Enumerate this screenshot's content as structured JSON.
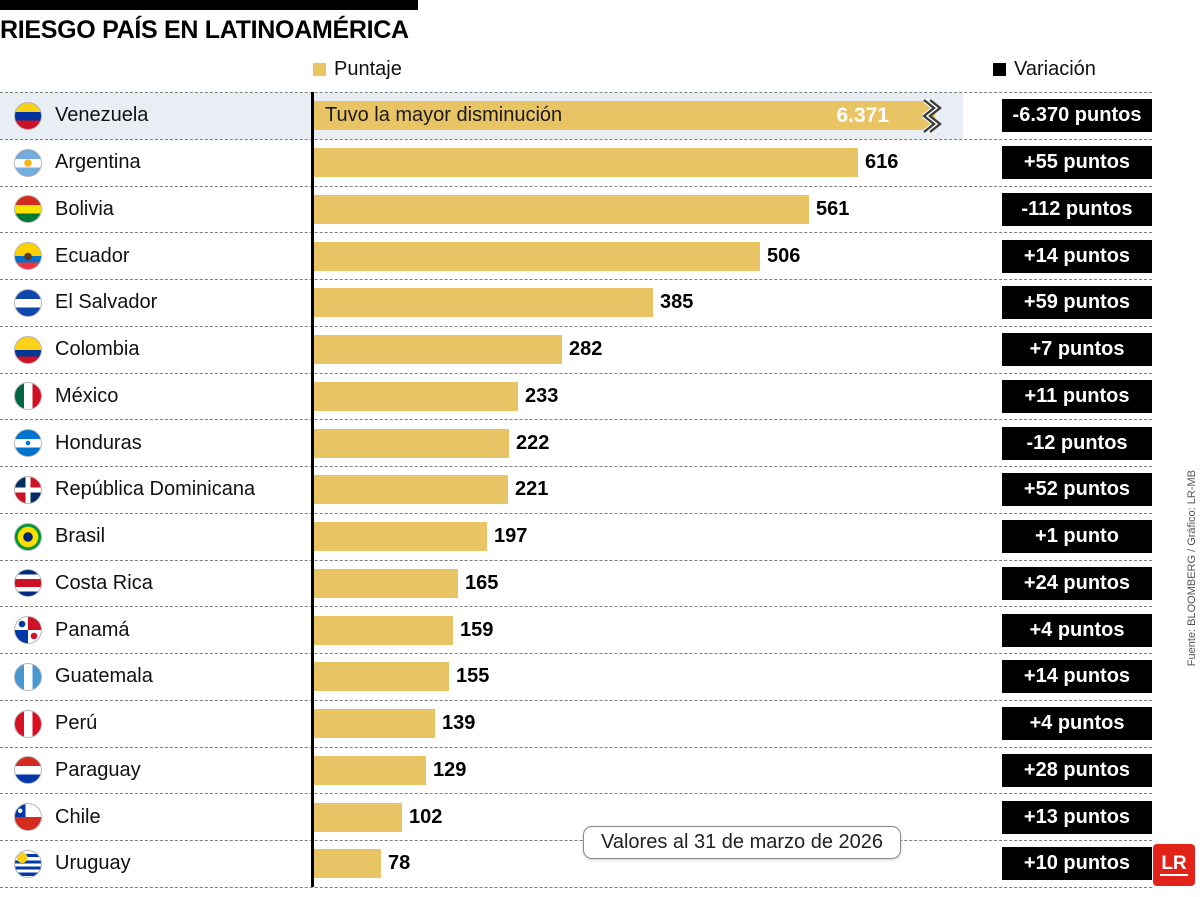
{
  "title": "RIESGO PAÍS EN LATINOAMÉRICA",
  "legend": {
    "score_label": "Puntaje",
    "variation_label": "Variación"
  },
  "note": "Valores al 31 de marzo de 2026",
  "source": "Fuente: BLOOMBERG / Gráfico: LR-MB",
  "logo_text": "LR",
  "colors": {
    "bar": "#e9c464",
    "badge": "#000000",
    "highlight_row": "#e9eef5",
    "logo_red": "#e2231a"
  },
  "chart_data": {
    "type": "bar",
    "orientation": "horizontal",
    "title": "RIESGO PAÍS EN LATINOAMÉRICA",
    "series_label": "Puntaje",
    "variation_label": "Variación",
    "annotation": "Tuvo la mayor disminución",
    "annotation_target": "Venezuela",
    "note": "Valores al 31 de marzo de 2026",
    "axis_break_on": "Venezuela",
    "categories": [
      "Venezuela",
      "Argentina",
      "Bolivia",
      "Ecuador",
      "El Salvador",
      "Colombia",
      "México",
      "Honduras",
      "República Dominicana",
      "Brasil",
      "Costa Rica",
      "Panamá",
      "Guatemala",
      "Perú",
      "Paraguay",
      "Chile",
      "Uruguay"
    ],
    "values": [
      6371,
      616,
      561,
      506,
      385,
      282,
      233,
      222,
      221,
      197,
      165,
      159,
      155,
      139,
      129,
      102,
      78
    ],
    "value_labels": [
      "6.371",
      "616",
      "561",
      "506",
      "385",
      "282",
      "233",
      "222",
      "221",
      "197",
      "165",
      "159",
      "155",
      "139",
      "129",
      "102",
      "78"
    ],
    "variations": [
      "-6.370 puntos",
      "+55 puntos",
      "-112 puntos",
      "+14 puntos",
      "+59 puntos",
      "+7 puntos",
      "+11 puntos",
      "-12 puntos",
      "+52 puntos",
      "+1 punto",
      "+24 puntos",
      "+4 puntos",
      "+14 puntos",
      "+4 puntos",
      "+28 puntos",
      "+13 puntos",
      "+10 puntos"
    ]
  },
  "rows": [
    {
      "country": "Venezuela",
      "flag": "venezuela",
      "value": 6371,
      "value_label": "6.371",
      "variation": "-6.370 puntos",
      "highlight": true,
      "broken": true,
      "annotation": "Tuvo la mayor disminución"
    },
    {
      "country": "Argentina",
      "flag": "argentina",
      "value": 616,
      "value_label": "616",
      "variation": "+55 puntos"
    },
    {
      "country": "Bolivia",
      "flag": "bolivia",
      "value": 561,
      "value_label": "561",
      "variation": "-112 puntos"
    },
    {
      "country": "Ecuador",
      "flag": "ecuador",
      "value": 506,
      "value_label": "506",
      "variation": "+14 puntos"
    },
    {
      "country": "El Salvador",
      "flag": "el-salvador",
      "value": 385,
      "value_label": "385",
      "variation": "+59 puntos"
    },
    {
      "country": "Colombia",
      "flag": "colombia",
      "value": 282,
      "value_label": "282",
      "variation": "+7 puntos"
    },
    {
      "country": "México",
      "flag": "mexico",
      "value": 233,
      "value_label": "233",
      "variation": "+11 puntos"
    },
    {
      "country": "Honduras",
      "flag": "honduras",
      "value": 222,
      "value_label": "222",
      "variation": "-12 puntos"
    },
    {
      "country": "República Dominicana",
      "flag": "republica-dominicana",
      "value": 221,
      "value_label": "221",
      "variation": "+52 puntos"
    },
    {
      "country": "Brasil",
      "flag": "brasil",
      "value": 197,
      "value_label": "197",
      "variation": "+1 punto"
    },
    {
      "country": "Costa Rica",
      "flag": "costa-rica",
      "value": 165,
      "value_label": "165",
      "variation": "+24 puntos"
    },
    {
      "country": "Panamá",
      "flag": "panama",
      "value": 159,
      "value_label": "159",
      "variation": "+4 puntos"
    },
    {
      "country": "Guatemala",
      "flag": "guatemala",
      "value": 155,
      "value_label": "155",
      "variation": "+14 puntos"
    },
    {
      "country": "Perú",
      "flag": "peru",
      "value": 139,
      "value_label": "139",
      "variation": "+4 puntos"
    },
    {
      "country": "Paraguay",
      "flag": "paraguay",
      "value": 129,
      "value_label": "129",
      "variation": "+28 puntos"
    },
    {
      "country": "Chile",
      "flag": "chile",
      "value": 102,
      "value_label": "102",
      "variation": "+13 puntos"
    },
    {
      "country": "Uruguay",
      "flag": "uruguay",
      "value": 78,
      "value_label": "78",
      "variation": "+10 puntos"
    }
  ]
}
